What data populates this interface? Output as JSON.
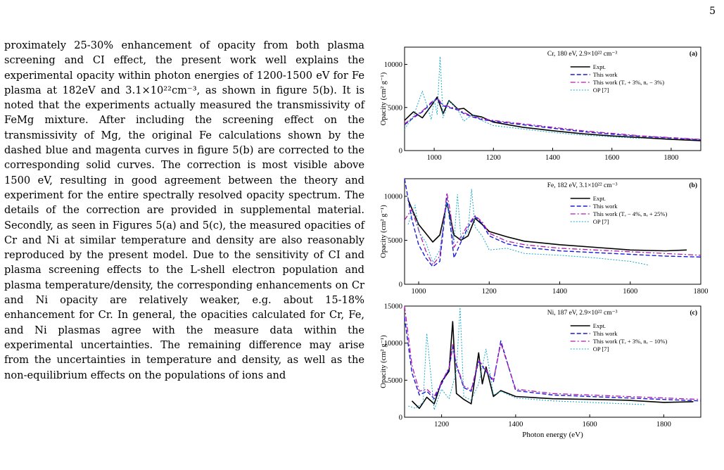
{
  "page_number": "5",
  "body_text": "proximately 25-30% enhancement of opacity from both plasma screening and CI effect, the present work well explains the experimental opacity within photon energies of 1200-1500 eV for Fe plasma at 182eV and 3.1×10²²cm⁻³, as shown in figure 5(b). It is noted that the experiments actually measured the transmissivity of FeMg mixture. After including the screening effect on the transmissivity of Mg, the original Fe calculations shown by the dashed blue and magenta curves in figure 5(b) are corrected to the corresponding solid curves. The correction is most visible above 1500 eV, resulting in good agreement between the theory and experiment for the entire spectrally resolved opacity spectrum. The details of the correction are provided in supplemental material. Secondly, as seen in Figures 5(a) and 5(c), the measured opacities of Cr and Ni at similar temperature and density are also reasonably reproduced by the present model. Due to the sensitivity of CI and plasma screening effects to the L-shell electron population and plasma temperature/density, the corresponding enhancements on Cr and Ni opacity are relatively weaker, e.g. about 15-18% enhancement for Cr. In general, the opacities calculated for Cr, Fe, and Ni plasmas agree with the measure data within the experimental uncertainties. The remaining difference may arise from the uncertainties in temperature and density, as well as the non-equilibrium effects on the populations of ions and",
  "figure": {
    "xlabel": "Photon energy (eV)",
    "ylabel": "Opacity (cm² g⁻¹)",
    "colors": {
      "expt": "#000000",
      "work": "#1a1ad6",
      "mod": "#b01ab0",
      "op": "#19a9c4"
    },
    "panels": [
      {
        "tag": "(a)",
        "title": "Cr, 180 eV, 2.9×10²² cm⁻³",
        "legend": [
          "Expt.",
          "This work",
          "This work (Tₑ + 3%, nₑ − 3%)",
          "OP [7]"
        ],
        "xlim": [
          900,
          1900
        ],
        "ylim": [
          0,
          12000
        ],
        "xticks": [
          1000,
          1200,
          1400,
          1600,
          1800
        ],
        "yticks": [
          0,
          5000,
          10000
        ]
      },
      {
        "tag": "(b)",
        "title": "Fe, 182 eV, 3.1×10²² cm⁻³",
        "legend": [
          "Expt.",
          "This work",
          "This work (Tₑ − 4%, nₑ + 25%)",
          "OP [7]"
        ],
        "xlim": [
          960,
          1800
        ],
        "ylim": [
          0,
          12000
        ],
        "xticks": [
          1000,
          1200,
          1400,
          1600,
          1800
        ],
        "yticks": [
          0,
          5000,
          10000
        ]
      },
      {
        "tag": "(c)",
        "title": "Ni, 187 eV, 2.9×10²² cm⁻³",
        "legend": [
          "Expt.",
          "This work",
          "This work (Tₑ + 3%, nₑ − 10%)",
          "OP [7]"
        ],
        "xlim": [
          1100,
          1900
        ],
        "ylim": [
          0,
          15000
        ],
        "xticks": [
          1200,
          1400,
          1600,
          1800
        ],
        "yticks": [
          0,
          5000,
          10000,
          15000
        ]
      }
    ]
  },
  "chart_data": [
    {
      "type": "line",
      "title": "Cr, 180 eV, 2.9×10²² cm⁻³",
      "xlabel": "",
      "ylabel": "Opacity (cm² g⁻¹)",
      "xlim": [
        900,
        1900
      ],
      "ylim": [
        0,
        12000
      ],
      "series": [
        {
          "name": "Expt.",
          "x": [
            900,
            930,
            960,
            990,
            1010,
            1030,
            1050,
            1080,
            1100,
            1130,
            1160,
            1200,
            1250,
            1300,
            1400,
            1500,
            1600,
            1700,
            1800,
            1900
          ],
          "values": [
            3500,
            4500,
            3800,
            5200,
            6200,
            4300,
            5800,
            4800,
            4900,
            4100,
            3900,
            3300,
            3000,
            2700,
            2300,
            1950,
            1700,
            1500,
            1300,
            1150
          ]
        },
        {
          "name": "This work",
          "x": [
            900,
            930,
            960,
            990,
            1010,
            1030,
            1050,
            1080,
            1100,
            1130,
            1160,
            1200,
            1250,
            1300,
            1400,
            1500,
            1600,
            1700,
            1800,
            1900
          ],
          "values": [
            3000,
            3800,
            4500,
            5500,
            6000,
            5200,
            5000,
            4700,
            4300,
            3900,
            3600,
            3400,
            3200,
            3000,
            2600,
            2200,
            1900,
            1650,
            1450,
            1250
          ]
        },
        {
          "name": "This work (Tₑ + 3%, nₑ − 3%)",
          "x": [
            900,
            930,
            960,
            990,
            1010,
            1030,
            1050,
            1080,
            1100,
            1130,
            1160,
            1200,
            1250,
            1300,
            1400,
            1500,
            1600,
            1700,
            1800,
            1900
          ],
          "values": [
            3100,
            3900,
            4600,
            5600,
            6100,
            5300,
            5100,
            4800,
            4400,
            4000,
            3700,
            3500,
            3300,
            3100,
            2700,
            2300,
            2000,
            1700,
            1500,
            1300
          ]
        },
        {
          "name": "OP [7]",
          "x": [
            900,
            930,
            960,
            990,
            1000,
            1010,
            1020,
            1030,
            1050,
            1080,
            1100,
            1130,
            1160,
            1200,
            1250,
            1300,
            1400,
            1500,
            1600,
            1700
          ],
          "values": [
            2500,
            4000,
            6900,
            3600,
            5900,
            4200,
            10900,
            3800,
            5800,
            4700,
            3400,
            4200,
            3500,
            2900,
            2700,
            2500,
            2100,
            1800,
            1600,
            1400
          ]
        }
      ]
    },
    {
      "type": "line",
      "title": "Fe, 182 eV, 3.1×10²² cm⁻³",
      "xlabel": "",
      "ylabel": "Opacity (cm² g⁻¹)",
      "xlim": [
        960,
        1800
      ],
      "ylim": [
        0,
        12000
      ],
      "series": [
        {
          "name": "Expt.",
          "x": [
            970,
            985,
            1000,
            1020,
            1040,
            1060,
            1080,
            1090,
            1100,
            1120,
            1140,
            1160,
            1180,
            1200,
            1250,
            1300,
            1400,
            1500,
            1600,
            1700,
            1760
          ],
          "values": [
            9600,
            8200,
            6800,
            5800,
            4800,
            5600,
            9200,
            7600,
            5600,
            5000,
            5500,
            7500,
            6800,
            6000,
            5400,
            4900,
            4500,
            4200,
            3900,
            3800,
            3900
          ]
        },
        {
          "name": "This work",
          "x": [
            960,
            980,
            1000,
            1020,
            1040,
            1060,
            1080,
            1090,
            1100,
            1120,
            1140,
            1160,
            1180,
            1200,
            1250,
            1300,
            1400,
            1500,
            1600,
            1700,
            1800
          ],
          "values": [
            12000,
            7500,
            4500,
            3000,
            2000,
            2600,
            9800,
            6600,
            3000,
            4800,
            6500,
            7700,
            6900,
            5500,
            4600,
            4200,
            3800,
            3600,
            3400,
            3200,
            3100
          ]
        },
        {
          "name": "This work (Tₑ − 4%, nₑ + 25%)",
          "x": [
            960,
            980,
            1000,
            1020,
            1040,
            1060,
            1080,
            1090,
            1100,
            1120,
            1140,
            1160,
            1180,
            1200,
            1250,
            1300,
            1400,
            1500,
            1600,
            1700,
            1800
          ],
          "values": [
            7300,
            8500,
            6200,
            3800,
            2200,
            3200,
            10400,
            8200,
            4200,
            5400,
            6800,
            7800,
            7100,
            5800,
            4900,
            4500,
            4100,
            3900,
            3700,
            3500,
            3300
          ]
        },
        {
          "name": "OP [7]",
          "x": [
            970,
            990,
            1000,
            1020,
            1040,
            1060,
            1080,
            1100,
            1110,
            1120,
            1140,
            1150,
            1160,
            1180,
            1200,
            1250,
            1300,
            1400,
            1500,
            1600,
            1650
          ],
          "values": [
            6800,
            9000,
            6000,
            4800,
            2500,
            3900,
            9300,
            4800,
            10200,
            5200,
            6000,
            10800,
            6500,
            5500,
            3900,
            4100,
            3500,
            3300,
            3000,
            2600,
            2200
          ]
        }
      ]
    },
    {
      "type": "line",
      "title": "Ni, 187 eV, 2.9×10²² cm⁻³",
      "xlabel": "Photon energy (eV)",
      "ylabel": "Opacity (cm² g⁻¹)",
      "xlim": [
        1100,
        1900
      ],
      "ylim": [
        0,
        15000
      ],
      "series": [
        {
          "name": "Expt.",
          "x": [
            1120,
            1140,
            1160,
            1180,
            1200,
            1220,
            1230,
            1240,
            1260,
            1280,
            1300,
            1310,
            1320,
            1340,
            1360,
            1400,
            1500,
            1600,
            1700,
            1800,
            1880
          ],
          "values": [
            2200,
            1200,
            2700,
            1800,
            4800,
            6200,
            12900,
            3200,
            2400,
            1800,
            8700,
            4500,
            6800,
            2800,
            3600,
            2800,
            2500,
            2400,
            2300,
            2000,
            2100
          ]
        },
        {
          "name": "This work",
          "x": [
            1100,
            1120,
            1140,
            1160,
            1180,
            1200,
            1220,
            1230,
            1240,
            1260,
            1280,
            1300,
            1320,
            1340,
            1360,
            1400,
            1500,
            1600,
            1700,
            1800,
            1900
          ],
          "values": [
            13500,
            6000,
            3000,
            3500,
            2500,
            4500,
            6500,
            9500,
            7000,
            4000,
            3500,
            7500,
            6200,
            4800,
            10300,
            3600,
            3000,
            2800,
            2600,
            2400,
            2200
          ]
        },
        {
          "name": "This work (Tₑ + 3%, nₑ − 10%)",
          "x": [
            1100,
            1120,
            1140,
            1160,
            1180,
            1200,
            1220,
            1230,
            1240,
            1260,
            1280,
            1300,
            1320,
            1340,
            1360,
            1400,
            1500,
            1600,
            1700,
            1800,
            1900
          ],
          "values": [
            15000,
            7000,
            3500,
            3800,
            2800,
            4700,
            6700,
            9800,
            7200,
            4200,
            3700,
            7700,
            6400,
            5000,
            10000,
            3800,
            3200,
            3000,
            2800,
            2600,
            2400
          ]
        },
        {
          "name": "OP [7]",
          "x": [
            1110,
            1130,
            1150,
            1160,
            1180,
            1200,
            1220,
            1240,
            1250,
            1260,
            1280,
            1300,
            1320,
            1340,
            1360,
            1400,
            1500,
            1600,
            1700,
            1750
          ],
          "values": [
            1500,
            1200,
            2000,
            11300,
            1000,
            3800,
            2500,
            6200,
            14800,
            2800,
            2300,
            4500,
            9200,
            3000,
            3500,
            2600,
            2200,
            2000,
            1800,
            1700
          ]
        }
      ]
    }
  ]
}
